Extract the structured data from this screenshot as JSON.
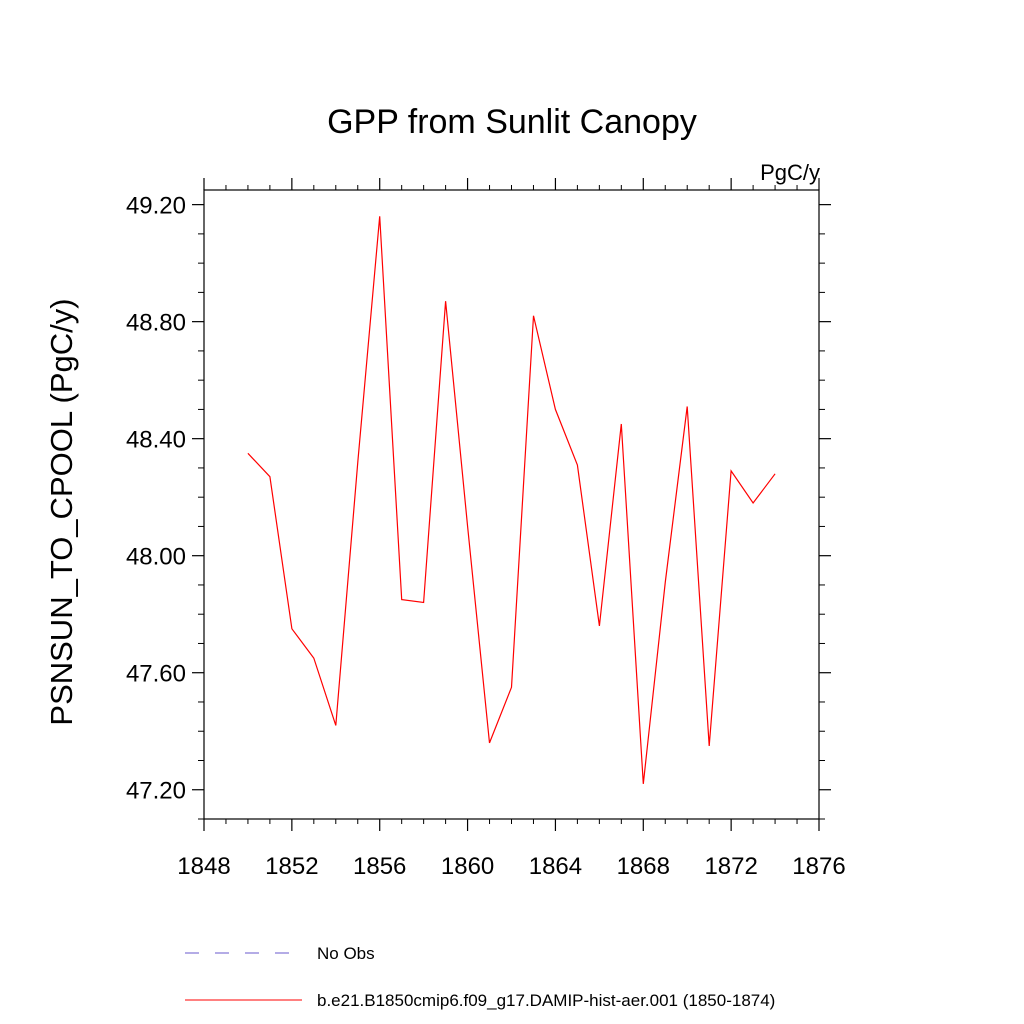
{
  "chart_data": {
    "type": "line",
    "title": "GPP from Sunlit Canopy",
    "units_label": "PgC/y",
    "xlabel": "",
    "ylabel": "PSNSUN_TO_CPOOL  (PgC/y)",
    "xlim": [
      1848,
      1876
    ],
    "ylim": [
      47.1,
      49.25
    ],
    "xticks": [
      1848,
      1852,
      1856,
      1860,
      1864,
      1868,
      1872,
      1876
    ],
    "yticks": [
      47.2,
      47.6,
      48.0,
      48.4,
      48.8,
      49.2
    ],
    "ytick_labels": [
      "47.20",
      "47.60",
      "48.00",
      "48.40",
      "48.80",
      "49.20"
    ],
    "grid": false,
    "legend_position": "bottom",
    "legend": [
      {
        "label": "No Obs",
        "color": "#6a5acd",
        "style": "dashed"
      },
      {
        "label": "b.e21.B1850cmip6.f09_g17.DAMIP-hist-aer.001 (1850-1874)",
        "color": "#ff0000",
        "style": "solid"
      }
    ],
    "series": [
      {
        "name": "b.e21.B1850cmip6.f09_g17.DAMIP-hist-aer.001 (1850-1874)",
        "color": "#ff0000",
        "x": [
          1850,
          1851,
          1852,
          1853,
          1854,
          1855,
          1856,
          1857,
          1858,
          1859,
          1860,
          1861,
          1862,
          1863,
          1864,
          1865,
          1866,
          1867,
          1868,
          1869,
          1870,
          1871,
          1872,
          1873,
          1874
        ],
        "y": [
          48.35,
          48.27,
          47.75,
          47.65,
          47.42,
          48.32,
          49.16,
          47.85,
          47.84,
          48.87,
          48.1,
          47.36,
          47.55,
          48.82,
          48.5,
          48.31,
          47.76,
          48.45,
          47.22,
          47.91,
          48.51,
          47.35,
          48.29,
          48.18,
          48.28
        ]
      }
    ]
  }
}
